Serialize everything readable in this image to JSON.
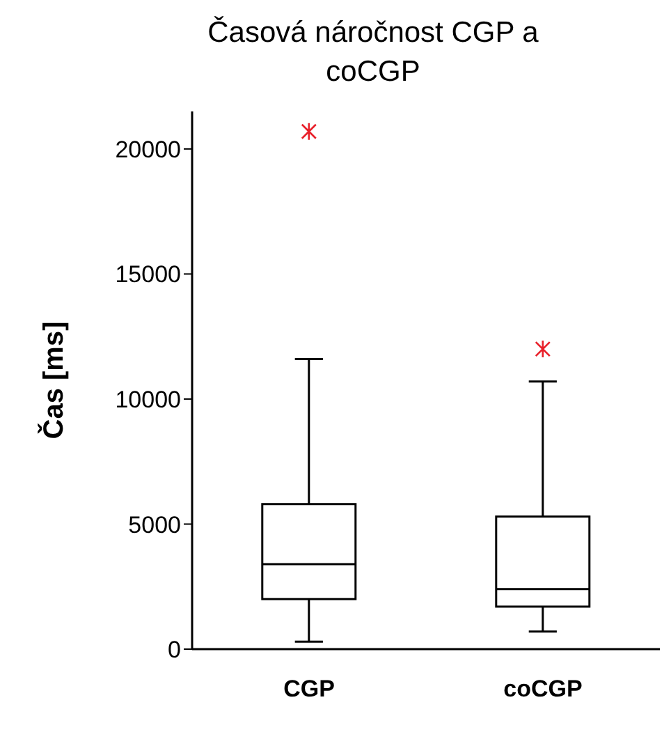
{
  "chart_data": {
    "type": "box",
    "title": "Časová náročnost CGP a coCGP",
    "ylabel": "Čas [ms]",
    "categories": [
      "CGP",
      "coCGP"
    ],
    "color": "#000000",
    "boxes": [
      {
        "low": 300,
        "q1": 2000,
        "median": 3400,
        "q3": 5800,
        "high": 11600,
        "outliers": [
          20700
        ]
      },
      {
        "low": 700,
        "q1": 1700,
        "median": 2400,
        "q3": 5300,
        "high": 10700,
        "outliers": [
          12000
        ]
      }
    ],
    "ylim": [
      0,
      21500
    ],
    "yticks": [
      0,
      5000,
      10000,
      15000,
      20000
    ],
    "grid": false,
    "legend": false
  }
}
